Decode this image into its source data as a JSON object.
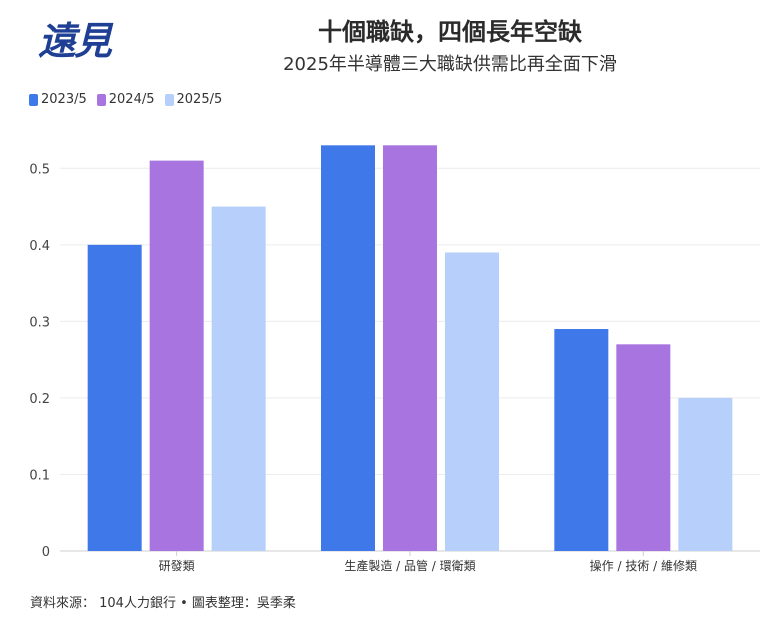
{
  "logo_text": "遠見",
  "chart_data": {
    "type": "bar",
    "title": "十個職缺，四個長年空缺",
    "subtitle": "2025年半導體三大職缺供需比再全面下滑",
    "categories": [
      "研發類",
      "生產製造 / 品管 / 環衛類",
      "操作 / 技術 / 維修類"
    ],
    "series": [
      {
        "name": "2023/5",
        "color": "#3f78e8",
        "values": [
          0.4,
          0.53,
          0.29
        ]
      },
      {
        "name": "2024/5",
        "color": "#a774e0",
        "values": [
          0.51,
          0.53,
          0.27
        ]
      },
      {
        "name": "2025/5",
        "color": "#b7d0fb",
        "values": [
          0.45,
          0.39,
          0.2
        ]
      }
    ],
    "yticks": [
      "0",
      "0.1",
      "0.2",
      "0.3",
      "0.4",
      "0.5"
    ],
    "ylim": [
      0,
      0.55
    ],
    "grid": true,
    "legend": "top-left"
  },
  "source": "資料來源： 104人力銀行 • 圖表整理：吳季柔"
}
